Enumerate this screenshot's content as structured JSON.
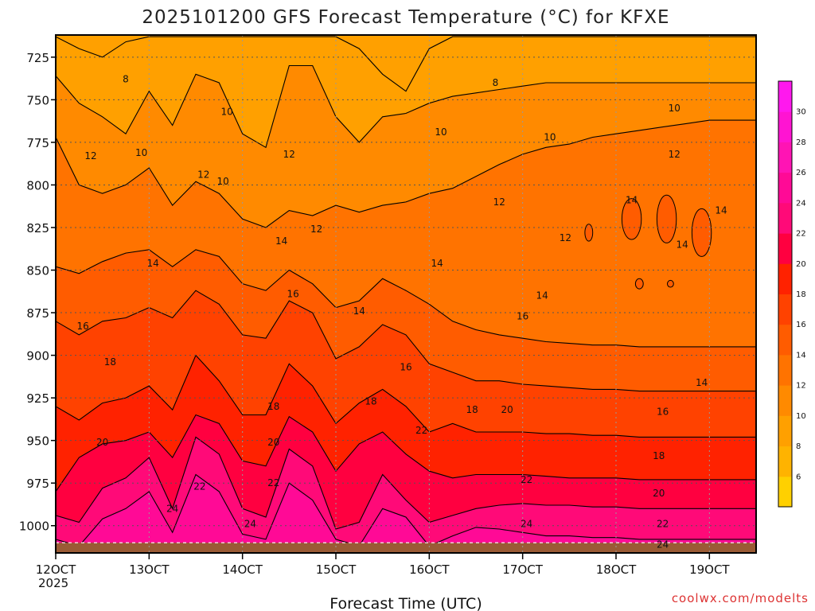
{
  "chart_data": {
    "type": "heatmap",
    "title": "2025101200 GFS Forecast Temperature (°C) for KFXE",
    "xlabel": "Forecast Time (UTC)",
    "ylabel": "",
    "x_ticks": [
      "12OCT",
      "13OCT",
      "14OCT",
      "15OCT",
      "16OCT",
      "17OCT",
      "18OCT",
      "19OCT"
    ],
    "x_tick_year": "2025",
    "x_range_hours": [
      0,
      180
    ],
    "y_ticks": [
      "725",
      "750",
      "775",
      "800",
      "825",
      "850",
      "875",
      "900",
      "925",
      "950",
      "975",
      "1000"
    ],
    "y_range_hpa": [
      712,
      1016
    ],
    "colorbar": {
      "levels": [
        4,
        6,
        8,
        10,
        12,
        14,
        16,
        18,
        20,
        22,
        24,
        26,
        28,
        30,
        32
      ],
      "labels": [
        "6",
        "8",
        "10",
        "12",
        "14",
        "16",
        "18",
        "20",
        "22",
        "24",
        "26",
        "28",
        "30"
      ],
      "colors": [
        "#ffd000",
        "#ffb300",
        "#ffa000",
        "#ff8a00",
        "#ff7300",
        "#ff5c00",
        "#ff4200",
        "#ff2200",
        "#ff0040",
        "#ff0a78",
        "#ff0a96",
        "#ff14b4",
        "#ff14d2",
        "#ff18ee"
      ]
    },
    "contour_levels": [
      8,
      10,
      12,
      14,
      16,
      18,
      20,
      22,
      24
    ],
    "isotherm_depth_hpa": {
      "hours": [
        0,
        6,
        12,
        18,
        24,
        30,
        36,
        42,
        48,
        54,
        60,
        66,
        72,
        78,
        84,
        90,
        96,
        102,
        108,
        114,
        120,
        126,
        132,
        138,
        144,
        150,
        156,
        162,
        168,
        174,
        180
      ],
      "24": [
        1008,
        1012,
        996,
        990,
        980,
        1004,
        970,
        980,
        1005,
        1008,
        975,
        985,
        1008,
        1012,
        990,
        995,
        1012,
        1006,
        1001,
        1002,
        1004,
        1006,
        1006,
        1007,
        1007,
        1008,
        1008,
        1008,
        1008,
        1008,
        1008
      ],
      "22": [
        994,
        998,
        978,
        972,
        960,
        990,
        948,
        958,
        990,
        995,
        955,
        965,
        1002,
        998,
        970,
        985,
        998,
        994,
        990,
        988,
        987,
        988,
        988,
        989,
        989,
        990,
        990,
        990,
        990,
        990,
        990
      ],
      "20": [
        980,
        960,
        952,
        950,
        945,
        960,
        935,
        940,
        962,
        965,
        936,
        945,
        968,
        952,
        945,
        958,
        968,
        972,
        970,
        970,
        970,
        971,
        972,
        972,
        972,
        973,
        973,
        973,
        973,
        973,
        973
      ],
      "18": [
        930,
        938,
        928,
        925,
        918,
        932,
        900,
        915,
        935,
        935,
        905,
        918,
        940,
        928,
        920,
        930,
        945,
        940,
        945,
        945,
        945,
        946,
        946,
        947,
        947,
        948,
        948,
        948,
        948,
        948,
        948
      ],
      "16": [
        880,
        888,
        880,
        878,
        872,
        878,
        862,
        870,
        888,
        890,
        868,
        875,
        902,
        895,
        882,
        888,
        905,
        910,
        915,
        915,
        917,
        918,
        919,
        920,
        920,
        921,
        921,
        921,
        921,
        921,
        921
      ],
      "14": [
        848,
        852,
        845,
        840,
        838,
        848,
        838,
        842,
        858,
        862,
        850,
        858,
        872,
        868,
        855,
        862,
        870,
        880,
        885,
        888,
        890,
        892,
        893,
        894,
        894,
        895,
        895,
        895,
        895,
        895,
        895
      ],
      "12": [
        772,
        800,
        805,
        800,
        790,
        812,
        798,
        805,
        820,
        825,
        815,
        818,
        812,
        816,
        812,
        810,
        805,
        802,
        795,
        788,
        782,
        778,
        776,
        772,
        770,
        768,
        766,
        764,
        762,
        762,
        762
      ],
      "10": [
        736,
        752,
        760,
        770,
        745,
        765,
        735,
        740,
        770,
        778,
        730,
        730,
        760,
        775,
        760,
        758,
        752,
        748,
        746,
        744,
        742,
        740,
        740,
        740,
        740,
        740,
        740,
        740,
        740,
        740,
        740
      ],
      "8": [
        713,
        720,
        725,
        716,
        713,
        713,
        713,
        713,
        713,
        713,
        713,
        713,
        713,
        720,
        735,
        745,
        720,
        713,
        713,
        713,
        713,
        713,
        713,
        713,
        713,
        713,
        713,
        713,
        713,
        713,
        713
      ]
    },
    "contour_labels": [
      {
        "text": "8",
        "hour": 18,
        "hpa": 738
      },
      {
        "text": "8",
        "hour": 113,
        "hpa": 740
      },
      {
        "text": "10",
        "hour": 44,
        "hpa": 757
      },
      {
        "text": "10",
        "hour": 22,
        "hpa": 781
      },
      {
        "text": "10",
        "hour": 43,
        "hpa": 798
      },
      {
        "text": "10",
        "hour": 99,
        "hpa": 769
      },
      {
        "text": "10",
        "hour": 127,
        "hpa": 772
      },
      {
        "text": "10",
        "hour": 159,
        "hpa": 755
      },
      {
        "text": "12",
        "hour": 9,
        "hpa": 783
      },
      {
        "text": "12",
        "hour": 38,
        "hpa": 794
      },
      {
        "text": "12",
        "hour": 60,
        "hpa": 782
      },
      {
        "text": "12",
        "hour": 67,
        "hpa": 826
      },
      {
        "text": "12",
        "hour": 114,
        "hpa": 810
      },
      {
        "text": "12",
        "hour": 131,
        "hpa": 831
      },
      {
        "text": "12",
        "hour": 159,
        "hpa": 782
      },
      {
        "text": "14",
        "hour": 25,
        "hpa": 846
      },
      {
        "text": "14",
        "hour": 58,
        "hpa": 833
      },
      {
        "text": "14",
        "hour": 78,
        "hpa": 874
      },
      {
        "text": "14",
        "hour": 98,
        "hpa": 846
      },
      {
        "text": "14",
        "hour": 125,
        "hpa": 865
      },
      {
        "text": "14",
        "hour": 148,
        "hpa": 809
      },
      {
        "text": "14",
        "hour": 161,
        "hpa": 835
      },
      {
        "text": "14",
        "hour": 166,
        "hpa": 916
      },
      {
        "text": "14",
        "hour": 171,
        "hpa": 815
      },
      {
        "text": "16",
        "hour": 7,
        "hpa": 883
      },
      {
        "text": "16",
        "hour": 61,
        "hpa": 864
      },
      {
        "text": "16",
        "hour": 90,
        "hpa": 907
      },
      {
        "text": "16",
        "hour": 120,
        "hpa": 877
      },
      {
        "text": "16",
        "hour": 156,
        "hpa": 933
      },
      {
        "text": "18",
        "hour": 14,
        "hpa": 904
      },
      {
        "text": "18",
        "hour": 56,
        "hpa": 930
      },
      {
        "text": "18",
        "hour": 81,
        "hpa": 927
      },
      {
        "text": "18",
        "hour": 107,
        "hpa": 932
      },
      {
        "text": "18",
        "hour": 155,
        "hpa": 959
      },
      {
        "text": "20",
        "hour": 12,
        "hpa": 951
      },
      {
        "text": "20",
        "hour": 56,
        "hpa": 951
      },
      {
        "text": "20",
        "hour": 116,
        "hpa": 932
      },
      {
        "text": "20",
        "hour": 155,
        "hpa": 981
      },
      {
        "text": "22",
        "hour": 37,
        "hpa": 977
      },
      {
        "text": "22",
        "hour": 56,
        "hpa": 975
      },
      {
        "text": "22",
        "hour": 94,
        "hpa": 944
      },
      {
        "text": "22",
        "hour": 121,
        "hpa": 973
      },
      {
        "text": "22",
        "hour": 156,
        "hpa": 999
      },
      {
        "text": "24",
        "hour": 30,
        "hpa": 990
      },
      {
        "text": "24",
        "hour": 50,
        "hpa": 999
      },
      {
        "text": "24",
        "hour": 121,
        "hpa": 999
      },
      {
        "text": "24",
        "hour": 156,
        "hpa": 1011
      }
    ],
    "warm_pockets": [
      {
        "hour": 148,
        "hpa": 820,
        "dh": 2.5,
        "dp": 12
      },
      {
        "hour": 157,
        "hpa": 820,
        "dh": 2.5,
        "dp": 14
      },
      {
        "hour": 166,
        "hpa": 828,
        "dh": 2.5,
        "dp": 14
      },
      {
        "hour": 137,
        "hpa": 828,
        "dh": 1,
        "dp": 5
      },
      {
        "hour": 150,
        "hpa": 858,
        "dh": 1,
        "dp": 3
      },
      {
        "hour": 158,
        "hpa": 858,
        "dh": 0.8,
        "dp": 2
      }
    ],
    "ground_hpa": 1010,
    "credit": "coolwx.com/modelts"
  }
}
